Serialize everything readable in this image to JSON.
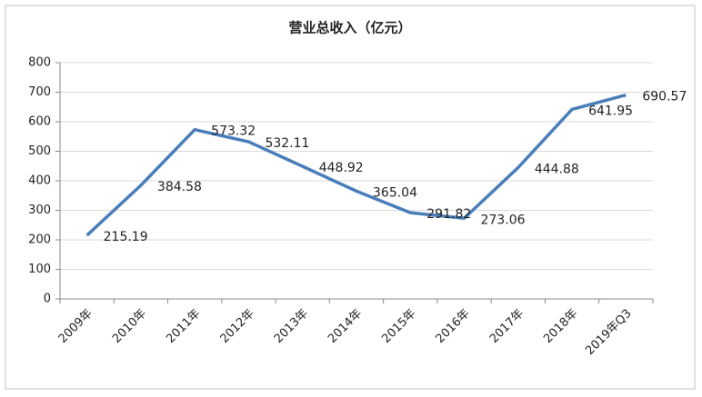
{
  "chart_data": {
    "type": "line",
    "title": "营业总收入（亿元）",
    "categories": [
      "2009年",
      "2010年",
      "2011年",
      "2012年",
      "2013年",
      "2014年",
      "2015年",
      "2016年",
      "2017年",
      "2018年",
      "2019年Q3"
    ],
    "values": [
      215.19,
      384.58,
      573.32,
      532.11,
      448.92,
      365.04,
      291.82,
      273.06,
      444.88,
      641.95,
      690.57
    ],
    "color": "#4a7ebb",
    "ylim": [
      0,
      800
    ],
    "yticks": [
      0,
      100,
      200,
      300,
      400,
      500,
      600,
      700,
      800
    ],
    "grid": true
  }
}
